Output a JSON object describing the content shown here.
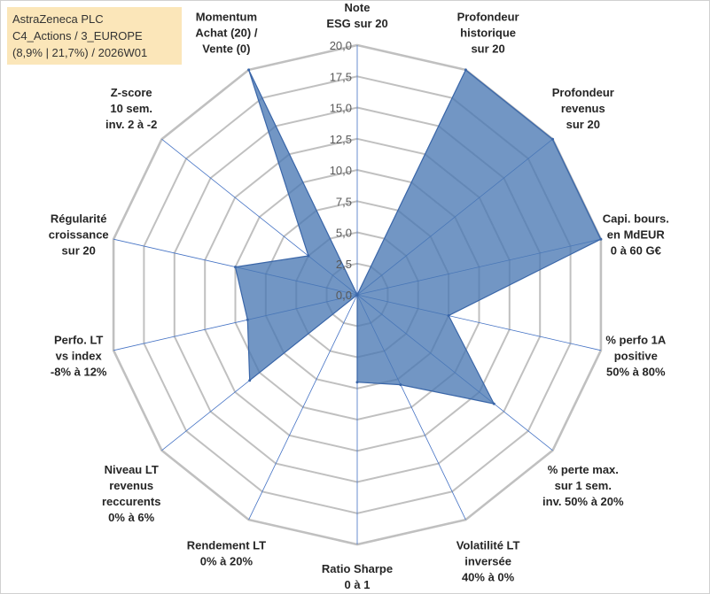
{
  "header": {
    "lines": [
      "AstraZeneca PLC",
      "C4_Actions / 3_EUROPE",
      "(8,9% | 21,7%) / 2026W01"
    ]
  },
  "colors": {
    "fill": "#4a78b3",
    "stroke": "#3a66a8",
    "grid": "#c0c0c0",
    "axis": "#4472c4",
    "info_bg": "#fbe6b9"
  },
  "chart_data": {
    "type": "radar",
    "axis_range": [
      0,
      20
    ],
    "tick_step": 2.5,
    "tick_labels": [
      "0,0",
      "2,5",
      "5,0",
      "7,5",
      "10,0",
      "12,5",
      "15,0",
      "17,5",
      "20,0"
    ],
    "categories": [
      [
        "Note",
        "ESG sur 20"
      ],
      [
        "Profondeur",
        "historique",
        "sur 20"
      ],
      [
        "Profondeur",
        "revenus",
        "sur 20"
      ],
      [
        "Capi. bours.",
        "en MdEUR",
        "0 à 60 G€"
      ],
      [
        "% perfo 1A",
        "positive",
        "50% à 80%"
      ],
      [
        "% perte max.",
        "sur 1 sem.",
        "inv. 50% à 20%"
      ],
      [
        "Volatilité LT",
        "inversée",
        "40% à 0%"
      ],
      [
        "Ratio Sharpe",
        "0 à 1"
      ],
      [
        "Rendement LT",
        "0% à 20%"
      ],
      [
        "Niveau LT",
        "revenus",
        "reccurents",
        "0% à 6%"
      ],
      [
        "Perfo. LT",
        "vs index",
        "-8% à 12%"
      ],
      [
        "Régularité",
        "croissance",
        "sur 20"
      ],
      [
        "Z-score",
        "10 sem.",
        "inv. 2 à -2"
      ],
      [
        "Momentum",
        "Achat (20) /",
        "Vente (0)"
      ]
    ],
    "series": [
      {
        "name": "AstraZeneca PLC",
        "values": [
          0,
          20,
          20,
          20,
          7.5,
          14,
          8,
          7,
          0,
          11,
          9,
          10,
          5,
          20
        ]
      }
    ]
  }
}
